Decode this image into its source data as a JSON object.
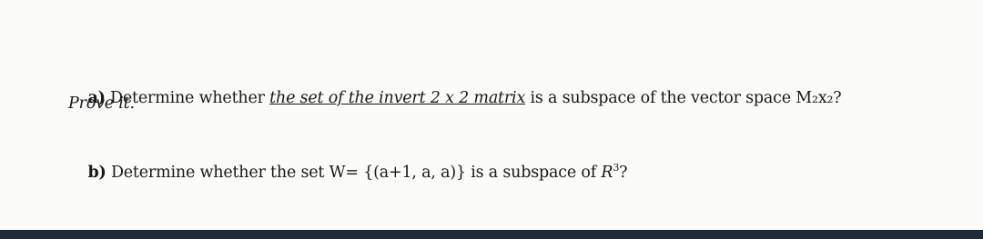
{
  "question_a": {
    "label": "a)",
    "text_before": " Determine whether ",
    "underlined": "the set of the invert 2 x 2 matrix",
    "text_after": " is a subspace of the vector space M₂x₂?",
    "note": "Prove it."
  },
  "question_b": {
    "label": "b)",
    "text": " Determine whether the set W= {(a+1, a, a)} is a subspace of ",
    "space": "R",
    "space_exponent": "3",
    "end": "?"
  }
}
